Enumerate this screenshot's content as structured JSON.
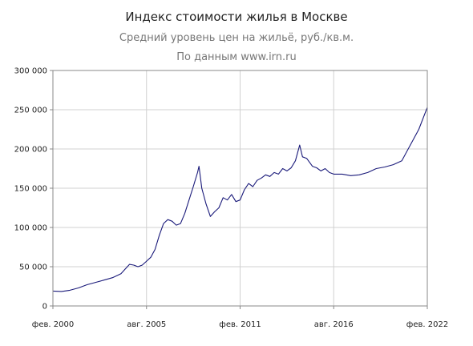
{
  "chart_data": {
    "type": "line",
    "title": "Индекс стоимости жилья в Москве",
    "subtitle": "Средний уровень цен на жильё, руб./кв.м.",
    "source": "По данным www.irn.ru",
    "ylim": [
      0,
      300000
    ],
    "y_ticks": [
      {
        "value": 0,
        "label": "0"
      },
      {
        "value": 50000,
        "label": "50 000"
      },
      {
        "value": 100000,
        "label": "100 000"
      },
      {
        "value": 150000,
        "label": "150 000"
      },
      {
        "value": 200000,
        "label": "200 000"
      },
      {
        "value": 250000,
        "label": "250 000"
      },
      {
        "value": 300000,
        "label": "300 000"
      }
    ],
    "x_range": [
      "2000-02",
      "2022-02"
    ],
    "x_ticks": [
      {
        "date": "2000-02",
        "label": "фев. 2000"
      },
      {
        "date": "2005-08",
        "label": "авг. 2005"
      },
      {
        "date": "2011-02",
        "label": "фев. 2011"
      },
      {
        "date": "2016-08",
        "label": "авг. 2016"
      },
      {
        "date": "2022-02",
        "label": "фев. 2022"
      }
    ],
    "grid": true,
    "line_color": "#1a1a7a",
    "series": [
      {
        "points": [
          [
            "2000-02",
            19000
          ],
          [
            "2000-08",
            18500
          ],
          [
            "2001-02",
            20000
          ],
          [
            "2001-08",
            23000
          ],
          [
            "2002-02",
            27000
          ],
          [
            "2002-08",
            30000
          ],
          [
            "2003-02",
            33000
          ],
          [
            "2003-08",
            36000
          ],
          [
            "2004-02",
            41000
          ],
          [
            "2004-05",
            47000
          ],
          [
            "2004-08",
            53000
          ],
          [
            "2004-11",
            52000
          ],
          [
            "2005-02",
            50000
          ],
          [
            "2005-05",
            52000
          ],
          [
            "2005-08",
            57000
          ],
          [
            "2005-11",
            62000
          ],
          [
            "2006-02",
            72000
          ],
          [
            "2006-05",
            90000
          ],
          [
            "2006-08",
            105000
          ],
          [
            "2006-11",
            110000
          ],
          [
            "2007-02",
            108000
          ],
          [
            "2007-05",
            103000
          ],
          [
            "2007-08",
            105000
          ],
          [
            "2007-11",
            118000
          ],
          [
            "2008-02",
            135000
          ],
          [
            "2008-05",
            152000
          ],
          [
            "2008-08",
            170000
          ],
          [
            "2008-09",
            178000
          ],
          [
            "2008-11",
            150000
          ],
          [
            "2009-02",
            130000
          ],
          [
            "2009-05",
            114000
          ],
          [
            "2009-08",
            120000
          ],
          [
            "2009-11",
            125000
          ],
          [
            "2010-02",
            138000
          ],
          [
            "2010-05",
            135000
          ],
          [
            "2010-08",
            142000
          ],
          [
            "2010-11",
            133000
          ],
          [
            "2011-02",
            135000
          ],
          [
            "2011-05",
            148000
          ],
          [
            "2011-08",
            156000
          ],
          [
            "2011-11",
            152000
          ],
          [
            "2012-02",
            160000
          ],
          [
            "2012-05",
            163000
          ],
          [
            "2012-08",
            167000
          ],
          [
            "2012-11",
            165000
          ],
          [
            "2013-02",
            170000
          ],
          [
            "2013-05",
            168000
          ],
          [
            "2013-08",
            175000
          ],
          [
            "2013-11",
            172000
          ],
          [
            "2014-02",
            176000
          ],
          [
            "2014-05",
            185000
          ],
          [
            "2014-08",
            205000
          ],
          [
            "2014-10",
            190000
          ],
          [
            "2015-01",
            188000
          ],
          [
            "2015-05",
            178000
          ],
          [
            "2015-08",
            176000
          ],
          [
            "2015-11",
            172000
          ],
          [
            "2016-02",
            175000
          ],
          [
            "2016-05",
            170000
          ],
          [
            "2016-08",
            168000
          ],
          [
            "2017-02",
            168000
          ],
          [
            "2017-08",
            166000
          ],
          [
            "2018-02",
            167000
          ],
          [
            "2018-08",
            170000
          ],
          [
            "2019-02",
            175000
          ],
          [
            "2019-08",
            177000
          ],
          [
            "2020-02",
            180000
          ],
          [
            "2020-08",
            185000
          ],
          [
            "2021-02",
            205000
          ],
          [
            "2021-08",
            225000
          ],
          [
            "2022-02",
            253000
          ]
        ]
      }
    ]
  }
}
